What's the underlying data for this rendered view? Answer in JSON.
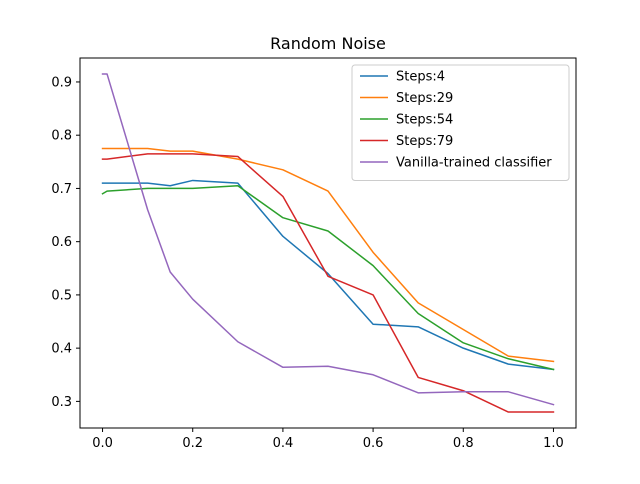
{
  "chart_data": {
    "type": "line",
    "title": "Random Noise",
    "xlabel": "",
    "ylabel": "",
    "xlim": [
      -0.05,
      1.05
    ],
    "ylim": [
      0.25,
      0.945
    ],
    "x_ticks": [
      0.0,
      0.2,
      0.4,
      0.6,
      0.8,
      1.0
    ],
    "x_tick_labels": [
      "0.0",
      "0.2",
      "0.4",
      "0.6",
      "0.8",
      "1.0"
    ],
    "y_ticks": [
      0.3,
      0.4,
      0.5,
      0.6,
      0.7,
      0.8,
      0.9
    ],
    "y_tick_labels": [
      "0.3",
      "0.4",
      "0.5",
      "0.6",
      "0.7",
      "0.8",
      "0.9"
    ],
    "grid": false,
    "legend_position": "top-right",
    "series": [
      {
        "name": "Steps:4",
        "color": "#1f77b4",
        "x": [
          0.0,
          0.01,
          0.1,
          0.15,
          0.2,
          0.3,
          0.4,
          0.5,
          0.6,
          0.7,
          0.8,
          0.9,
          1.0
        ],
        "y": [
          0.71,
          0.71,
          0.71,
          0.705,
          0.715,
          0.71,
          0.61,
          0.54,
          0.445,
          0.44,
          0.4,
          0.37,
          0.36
        ]
      },
      {
        "name": "Steps:29",
        "color": "#ff7f0e",
        "x": [
          0.0,
          0.01,
          0.1,
          0.15,
          0.2,
          0.3,
          0.4,
          0.5,
          0.6,
          0.7,
          0.8,
          0.9,
          1.0
        ],
        "y": [
          0.775,
          0.775,
          0.775,
          0.77,
          0.77,
          0.755,
          0.735,
          0.695,
          0.58,
          0.485,
          0.435,
          0.385,
          0.375
        ]
      },
      {
        "name": "Steps:54",
        "color": "#2ca02c",
        "x": [
          0.0,
          0.01,
          0.1,
          0.15,
          0.2,
          0.3,
          0.4,
          0.5,
          0.6,
          0.7,
          0.8,
          0.9,
          1.0
        ],
        "y": [
          0.69,
          0.695,
          0.7,
          0.7,
          0.7,
          0.705,
          0.645,
          0.62,
          0.555,
          0.465,
          0.41,
          0.38,
          0.36
        ]
      },
      {
        "name": "Steps:79",
        "color": "#d62728",
        "x": [
          0.0,
          0.01,
          0.1,
          0.15,
          0.2,
          0.3,
          0.4,
          0.5,
          0.6,
          0.7,
          0.8,
          0.9,
          1.0
        ],
        "y": [
          0.755,
          0.755,
          0.765,
          0.765,
          0.765,
          0.76,
          0.685,
          0.535,
          0.5,
          0.345,
          0.32,
          0.28,
          0.28
        ]
      },
      {
        "name": "Vanilla-trained classifier",
        "color": "#9467bd",
        "x": [
          0.0,
          0.01,
          0.1,
          0.15,
          0.2,
          0.3,
          0.4,
          0.5,
          0.6,
          0.7,
          0.8,
          0.9,
          1.0
        ],
        "y": [
          0.915,
          0.915,
          0.66,
          0.543,
          0.492,
          0.412,
          0.364,
          0.366,
          0.35,
          0.316,
          0.318,
          0.318,
          0.294
        ]
      }
    ]
  }
}
